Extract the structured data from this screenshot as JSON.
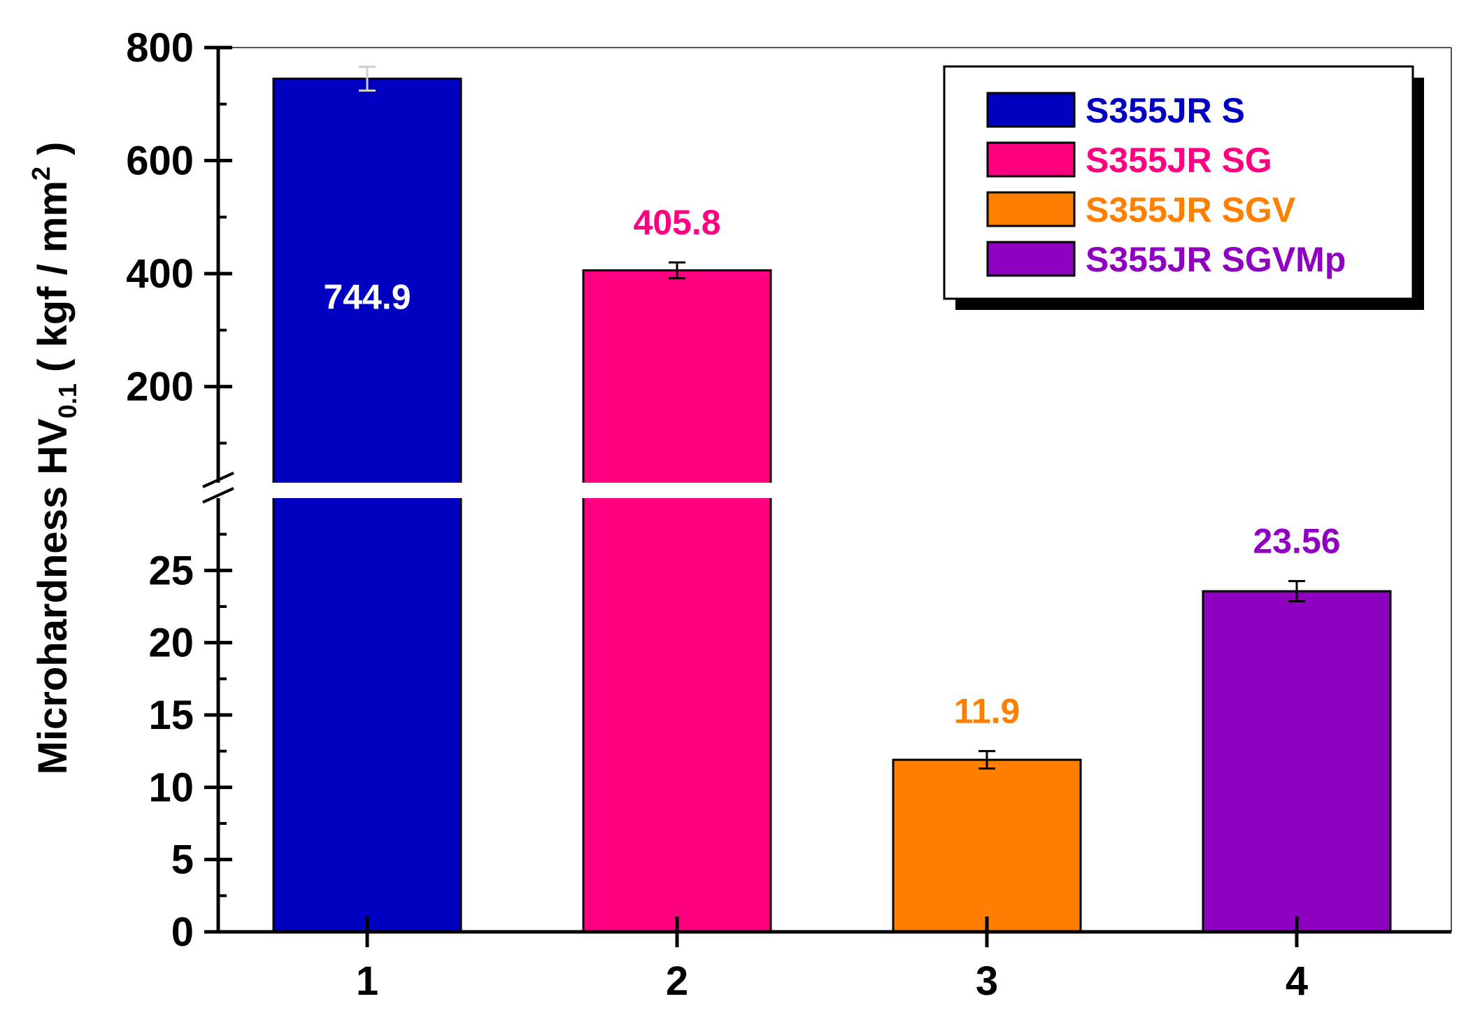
{
  "chart_data": {
    "type": "bar",
    "axis_break": {
      "lower_range": [
        0,
        30
      ],
      "upper_range": [
        30,
        800
      ]
    },
    "categories": [
      "1",
      "2",
      "3",
      "4"
    ],
    "values": [
      744.9,
      405.8,
      11.9,
      23.56
    ],
    "value_labels": [
      "744.9",
      "405.8",
      "11.9",
      "23.56"
    ],
    "error_bars": [
      21,
      14,
      0.6,
      0.7
    ],
    "series_names": [
      "S355JR S",
      "S355JR SG",
      "S355JR SGV",
      "S355JR SGVMp"
    ],
    "colors": [
      "#0000C0",
      "#FF0080",
      "#FF8000",
      "#9000C0"
    ],
    "ylabel_main": "Microhardness HV",
    "ylabel_subscript": "0.1",
    "ylabel_units_start": " ( kgf / mm",
    "ylabel_units_superscript": "2",
    "ylabel_units_end": " )",
    "xlabel": "",
    "upper_ticks": [
      "200",
      "400",
      "600",
      "800"
    ],
    "lower_ticks": [
      "0",
      "5",
      "10",
      "15",
      "20",
      "25"
    ],
    "legend_position": "top-right",
    "grid": false
  }
}
